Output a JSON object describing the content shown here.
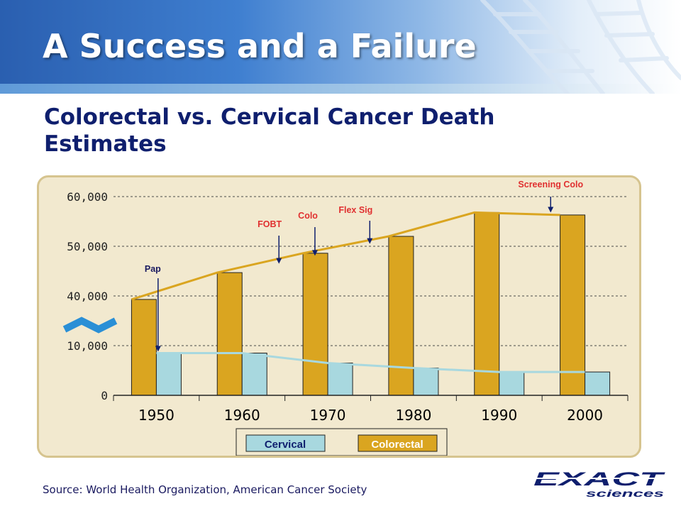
{
  "slide": {
    "title": "A Success and a Failure",
    "subtitle": "Colorectal vs. Cervical Cancer Death Estimates",
    "source": "Source: World Health Organization, American Cancer Society",
    "logo": {
      "primary": "EXACT",
      "secondary": "sciences"
    }
  },
  "chart_data": {
    "type": "bar",
    "categories": [
      "1950",
      "1960",
      "1970",
      "1980",
      "1990",
      "2000"
    ],
    "y_ticks": [
      "60,000",
      "50,000",
      "40,000",
      "10,000",
      "0"
    ],
    "y_scale": "broken axis between 10,000 and 40,000",
    "series": [
      {
        "name": "Colorectal",
        "color": "#daa520",
        "values": [
          39300,
          44700,
          48600,
          52000,
          56800,
          56300
        ]
      },
      {
        "name": "Cervical",
        "color": "#a8d8df",
        "values": [
          8500,
          8500,
          6500,
          5500,
          4700,
          4700
        ]
      }
    ],
    "trend_line_colors": {
      "Colorectal": "#daa520",
      "Cervical": "#a8d8df"
    },
    "annotations": [
      {
        "label": "Pap",
        "x": 1950.2,
        "points_to": 8500,
        "color": "#1a1a60"
      },
      {
        "label": "FOBT",
        "x": 1964.3,
        "points_to": 46200,
        "color": "#e03030"
      },
      {
        "label": "Colo",
        "x": 1968.5,
        "points_to": 47800,
        "color": "#e03030"
      },
      {
        "label": "Flex Sig",
        "x": 1974.9,
        "points_to": 50200,
        "color": "#e03030"
      },
      {
        "label": "Screening Colo",
        "x": 1996.0,
        "points_to": 56500,
        "color": "#e03030"
      }
    ],
    "legend": {
      "position": "bottom"
    },
    "grid": true
  }
}
